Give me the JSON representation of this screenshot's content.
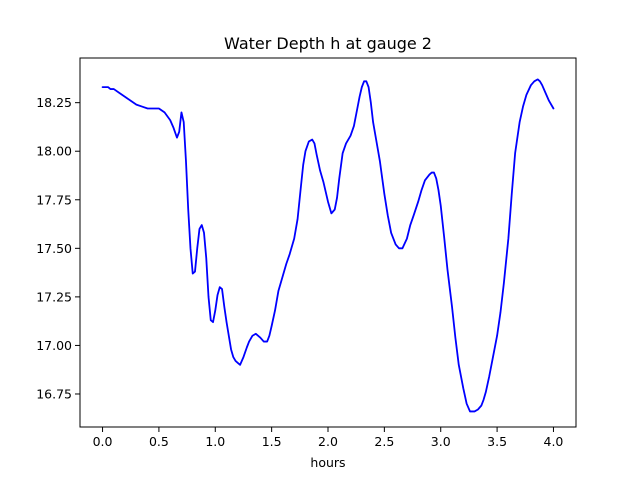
{
  "chart_data": {
    "type": "line",
    "title": "Water Depth h at gauge 2",
    "xlabel": "hours",
    "ylabel": "",
    "xlim": [
      -0.2,
      4.2
    ],
    "ylim": [
      16.58,
      18.48
    ],
    "x_ticks": [
      0.0,
      0.5,
      1.0,
      1.5,
      2.0,
      2.5,
      3.0,
      3.5,
      4.0
    ],
    "x_tick_labels": [
      "0.0",
      "0.5",
      "1.0",
      "1.5",
      "2.0",
      "2.5",
      "3.0",
      "3.5",
      "4.0"
    ],
    "y_ticks": [
      16.75,
      17.0,
      17.25,
      17.5,
      17.75,
      18.0,
      18.25
    ],
    "y_tick_labels": [
      "16.75",
      "17.00",
      "17.25",
      "17.50",
      "17.75",
      "18.00",
      "18.25"
    ],
    "grid": false,
    "legend": "none",
    "series": [
      {
        "color": "#0000ff",
        "x": [
          0.0,
          0.05,
          0.07,
          0.1,
          0.15,
          0.2,
          0.25,
          0.3,
          0.35,
          0.4,
          0.45,
          0.5,
          0.55,
          0.6,
          0.63,
          0.66,
          0.68,
          0.7,
          0.72,
          0.74,
          0.76,
          0.78,
          0.8,
          0.82,
          0.84,
          0.86,
          0.88,
          0.9,
          0.92,
          0.94,
          0.96,
          0.98,
          1.0,
          1.02,
          1.04,
          1.06,
          1.08,
          1.1,
          1.12,
          1.14,
          1.16,
          1.18,
          1.2,
          1.22,
          1.25,
          1.28,
          1.3,
          1.33,
          1.36,
          1.4,
          1.43,
          1.46,
          1.48,
          1.5,
          1.53,
          1.56,
          1.6,
          1.63,
          1.66,
          1.7,
          1.73,
          1.76,
          1.78,
          1.8,
          1.83,
          1.86,
          1.88,
          1.9,
          1.93,
          1.96,
          2.0,
          2.03,
          2.06,
          2.08,
          2.1,
          2.13,
          2.16,
          2.2,
          2.23,
          2.26,
          2.28,
          2.3,
          2.32,
          2.34,
          2.36,
          2.38,
          2.4,
          2.43,
          2.46,
          2.5,
          2.53,
          2.56,
          2.6,
          2.63,
          2.66,
          2.7,
          2.73,
          2.76,
          2.8,
          2.83,
          2.86,
          2.9,
          2.92,
          2.94,
          2.96,
          2.98,
          3.0,
          3.03,
          3.06,
          3.1,
          3.13,
          3.16,
          3.2,
          3.23,
          3.26,
          3.3,
          3.33,
          3.36,
          3.38,
          3.4,
          3.43,
          3.46,
          3.5,
          3.53,
          3.56,
          3.6,
          3.63,
          3.66,
          3.7,
          3.73,
          3.76,
          3.8,
          3.83,
          3.86,
          3.88,
          3.9,
          3.93,
          3.96,
          4.0
        ],
        "y": [
          18.33,
          18.33,
          18.32,
          18.32,
          18.3,
          18.28,
          18.26,
          18.24,
          18.23,
          18.22,
          18.22,
          18.22,
          18.2,
          18.16,
          18.12,
          18.07,
          18.1,
          18.2,
          18.15,
          17.95,
          17.7,
          17.5,
          17.37,
          17.38,
          17.5,
          17.6,
          17.62,
          17.58,
          17.45,
          17.25,
          17.13,
          17.12,
          17.18,
          17.26,
          17.3,
          17.29,
          17.2,
          17.12,
          17.05,
          16.98,
          16.94,
          16.92,
          16.91,
          16.9,
          16.94,
          16.99,
          17.02,
          17.05,
          17.06,
          17.04,
          17.02,
          17.02,
          17.05,
          17.1,
          17.18,
          17.28,
          17.36,
          17.42,
          17.47,
          17.55,
          17.65,
          17.82,
          17.93,
          18.0,
          18.05,
          18.06,
          18.04,
          17.98,
          17.9,
          17.84,
          17.74,
          17.68,
          17.7,
          17.76,
          17.86,
          17.99,
          18.04,
          18.08,
          18.13,
          18.22,
          18.28,
          18.33,
          18.36,
          18.36,
          18.33,
          18.25,
          18.15,
          18.05,
          17.95,
          17.78,
          17.67,
          17.58,
          17.52,
          17.5,
          17.5,
          17.55,
          17.62,
          17.67,
          17.74,
          17.8,
          17.85,
          17.88,
          17.89,
          17.89,
          17.86,
          17.8,
          17.72,
          17.56,
          17.39,
          17.2,
          17.04,
          16.9,
          16.78,
          16.7,
          16.66,
          16.66,
          16.67,
          16.69,
          16.72,
          16.76,
          16.84,
          16.93,
          17.05,
          17.17,
          17.32,
          17.55,
          17.78,
          17.99,
          18.15,
          18.23,
          18.29,
          18.34,
          18.36,
          18.37,
          18.36,
          18.34,
          18.3,
          18.26,
          18.22
        ]
      }
    ]
  }
}
